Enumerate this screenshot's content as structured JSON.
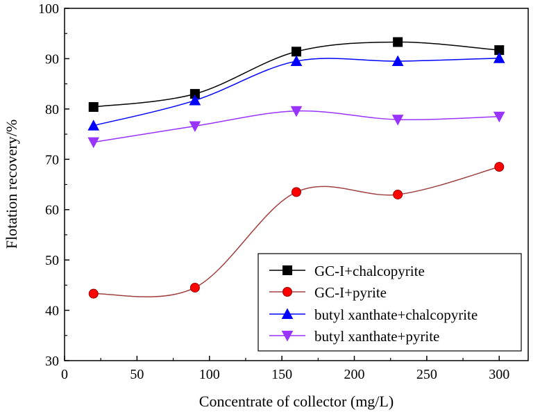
{
  "chart_data": {
    "type": "line",
    "title": "",
    "xlabel": "Concentrate of collector (mg/L)",
    "ylabel": "Flotation recovery/%",
    "xlim": [
      0,
      320
    ],
    "ylim": [
      30,
      100
    ],
    "xticks": [
      0,
      50,
      100,
      150,
      200,
      250,
      300
    ],
    "yticks": [
      30,
      40,
      50,
      60,
      70,
      80,
      90,
      100
    ],
    "grid": false,
    "legend_position": "bottom-right",
    "x": [
      20,
      90,
      160,
      230,
      300
    ],
    "series": [
      {
        "name": "GC-I+chalcopyrite",
        "values": [
          80.4,
          83.0,
          91.4,
          93.3,
          91.7
        ],
        "color": "#000000",
        "marker": "square"
      },
      {
        "name": "GC-I+pyrite",
        "values": [
          43.3,
          44.5,
          63.5,
          63.0,
          68.5
        ],
        "color": "#ff0000",
        "marker": "circle"
      },
      {
        "name": "butyl xanthate+chalcopyrite",
        "values": [
          76.7,
          81.7,
          89.5,
          89.5,
          90.1
        ],
        "color": "#0000ff",
        "marker": "triangle-up"
      },
      {
        "name": "butyl xanthate+pyrite",
        "values": [
          73.4,
          76.6,
          79.6,
          77.9,
          78.5
        ],
        "color": "#9933ff",
        "marker": "triangle-down"
      }
    ]
  }
}
